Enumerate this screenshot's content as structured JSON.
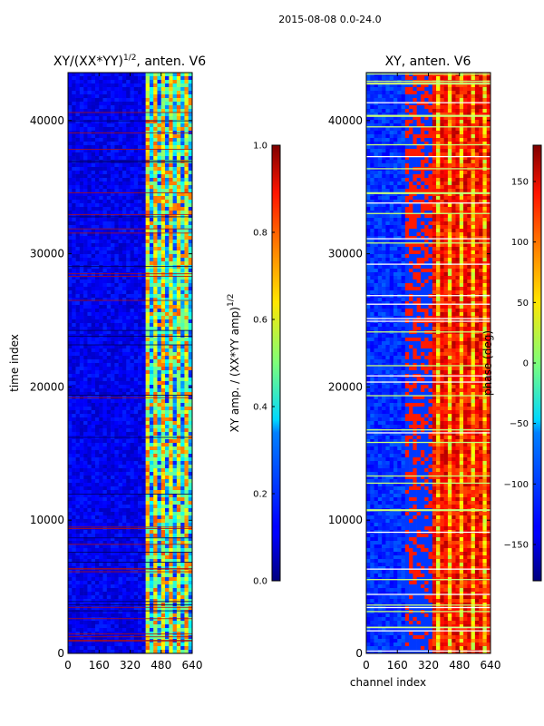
{
  "figure": {
    "suptitle": "2015-08-08 0.0-24.0"
  },
  "chart_data": [
    {
      "type": "heatmap",
      "title_main": "XY/(XX*YY)",
      "title_sup": "1/2",
      "title_tail": ", anten. V6",
      "xlabel": "",
      "ylabel": "time index",
      "xlim": [
        0,
        640
      ],
      "ylim": [
        0,
        43600
      ],
      "xticks": [
        "0",
        "160",
        "320",
        "480",
        "640"
      ],
      "xtick_values": [
        0,
        160,
        320,
        480,
        640
      ],
      "yticks": [
        "0",
        "10000",
        "20000",
        "30000",
        "40000"
      ],
      "ytick_values": [
        0,
        10000,
        20000,
        30000,
        40000
      ],
      "colormap": "jet",
      "colorbar": {
        "label_main": "XY amp. / (XX*YY amp)",
        "label_sup": "1/2",
        "range": [
          0.0,
          1.0
        ],
        "ticks": [
          "0.0",
          "0.2",
          "0.4",
          "0.6",
          "0.8",
          "1.0"
        ],
        "tick_values": [
          0.0,
          0.2,
          0.4,
          0.6,
          0.8,
          1.0
        ]
      }
    },
    {
      "type": "heatmap",
      "title": "XY, anten. V6",
      "xlabel": "channel index",
      "ylabel": "",
      "xlim": [
        0,
        640
      ],
      "ylim": [
        0,
        43600
      ],
      "xticks": [
        "0",
        "160",
        "320",
        "480",
        "640"
      ],
      "xtick_values": [
        0,
        160,
        320,
        480,
        640
      ],
      "yticks": [
        "0",
        "10000",
        "20000",
        "30000",
        "40000"
      ],
      "ytick_values": [
        0,
        10000,
        20000,
        30000,
        40000
      ],
      "colormap": "jet",
      "colorbar": {
        "label": "phase (deg)",
        "range": [
          -180,
          180
        ],
        "ticks": [
          "−150",
          "−100",
          "−50",
          "0",
          "50",
          "100",
          "150"
        ],
        "tick_values": [
          -150,
          -100,
          -50,
          0,
          50,
          100,
          150
        ]
      }
    }
  ]
}
